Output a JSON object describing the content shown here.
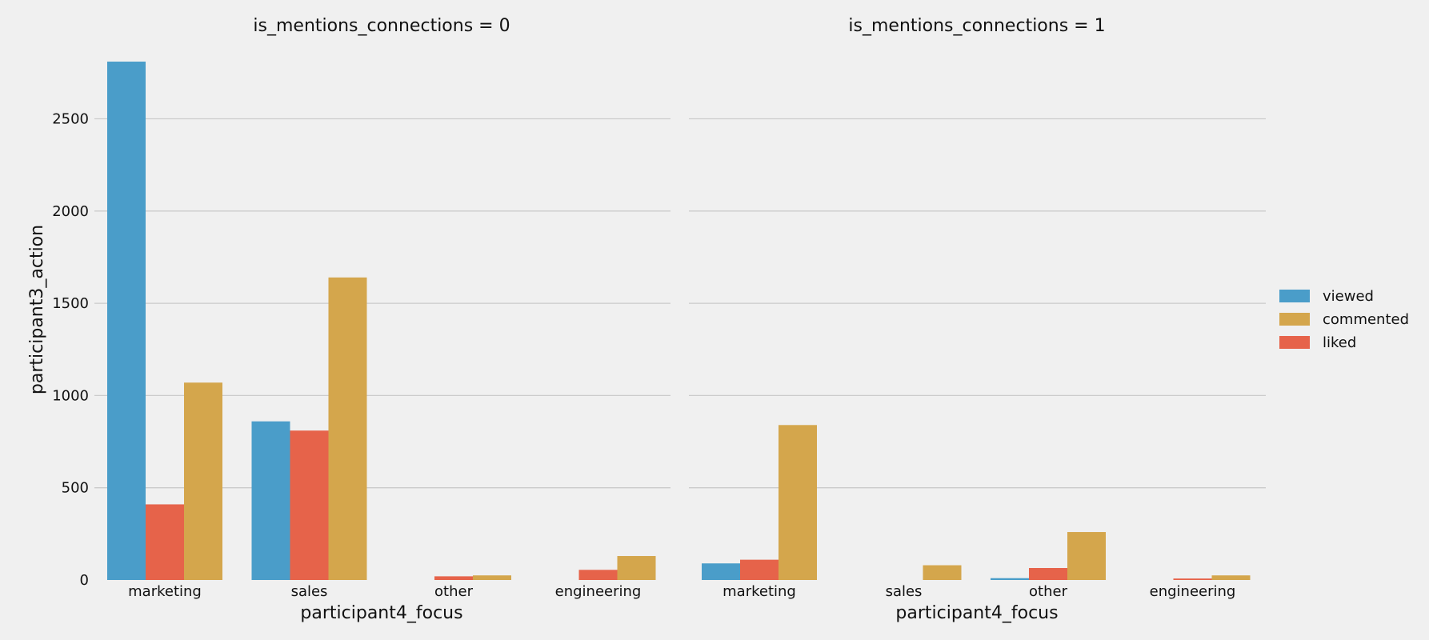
{
  "chart_data": {
    "type": "bar",
    "ylabel": "participant3_action",
    "ylim": [
      0,
      2850
    ],
    "yticks": [
      0,
      500,
      1000,
      1500,
      2000,
      2500
    ],
    "grid": true,
    "legend_position": "right",
    "legend": [
      {
        "name": "viewed",
        "color": "#4a9dc9"
      },
      {
        "name": "commented",
        "color": "#d4a64c"
      },
      {
        "name": "liked",
        "color": "#e6634a"
      }
    ],
    "bar_order": [
      "viewed",
      "liked",
      "commented"
    ],
    "panels": [
      {
        "title": "is_mentions_connections = 0",
        "xlabel": "participant4_focus",
        "categories": [
          "marketing",
          "sales",
          "other",
          "engineering"
        ],
        "series": [
          {
            "name": "viewed",
            "values": [
              2810,
              860,
              0,
              0
            ]
          },
          {
            "name": "liked",
            "values": [
              410,
              810,
              20,
              55
            ]
          },
          {
            "name": "commented",
            "values": [
              1070,
              1640,
              25,
              130
            ]
          }
        ]
      },
      {
        "title": "is_mentions_connections = 1",
        "xlabel": "participant4_focus",
        "categories": [
          "marketing",
          "sales",
          "other",
          "engineering"
        ],
        "series": [
          {
            "name": "viewed",
            "values": [
              90,
              0,
              10,
              0
            ]
          },
          {
            "name": "liked",
            "values": [
              110,
              0,
              65,
              8
            ]
          },
          {
            "name": "commented",
            "values": [
              840,
              80,
              260,
              25
            ]
          }
        ]
      }
    ]
  }
}
